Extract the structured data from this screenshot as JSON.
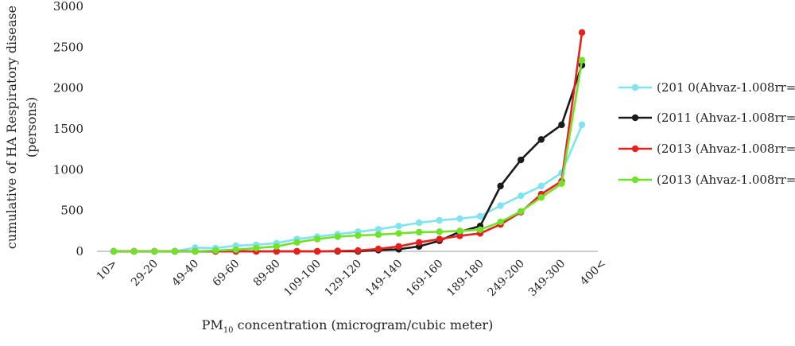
{
  "chart_data": {
    "type": "line",
    "title": "",
    "ylabel_lines": [
      "cumulative of HA Respiratory disease",
      "(persons)"
    ],
    "xlabel_main": "PM",
    "xlabel_sub": "10",
    "xlabel_rest": " concentration (microgram/cubic meter)",
    "ylim": [
      0,
      3000
    ],
    "yticks": [
      0,
      500,
      1000,
      1500,
      2000,
      2500,
      3000
    ],
    "grid": false,
    "legend_position": "right",
    "x_tick_labels": [
      "10>",
      "29-20",
      "49-40",
      "69-60",
      "89-80",
      "109-100",
      "129-120",
      "149-140",
      "169-160",
      "189-180",
      "249-200",
      "349-300",
      "400<"
    ],
    "series": [
      {
        "name": "(201 0(Ahvaz-1.008rr=",
        "color": "#7fe3f0",
        "values": [
          0,
          0,
          0,
          0,
          45,
          40,
          70,
          80,
          100,
          150,
          180,
          210,
          240,
          270,
          310,
          350,
          380,
          400,
          430,
          560,
          680,
          800,
          960,
          1550
        ]
      },
      {
        "name": "(2011 (Ahvaz-1.008rr=",
        "color": "#1a1a1a",
        "values": [
          0,
          0,
          0,
          0,
          0,
          0,
          0,
          0,
          0,
          0,
          0,
          0,
          0,
          15,
          25,
          60,
          130,
          240,
          310,
          800,
          1120,
          1370,
          1550,
          2280
        ]
      },
      {
        "name": "(2013 (Ahvaz-1.008rr=",
        "color": "#e8201c",
        "values": [
          0,
          0,
          0,
          0,
          0,
          0,
          0,
          0,
          0,
          0,
          0,
          5,
          10,
          30,
          60,
          110,
          150,
          190,
          220,
          330,
          480,
          700,
          860,
          2680
        ]
      },
      {
        "name": "(2013 (Ahvaz-1.008rr=",
        "color": "#6fe22a",
        "values": [
          0,
          0,
          0,
          0,
          0,
          10,
          20,
          40,
          60,
          110,
          150,
          180,
          195,
          205,
          220,
          235,
          240,
          250,
          265,
          360,
          490,
          660,
          830,
          2340
        ]
      }
    ]
  }
}
